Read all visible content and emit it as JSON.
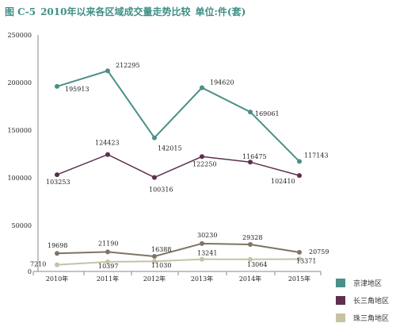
{
  "title": {
    "figure": "图 C-5",
    "main": "2010年以来各区域成交量走势比较",
    "unit": "单位:件(套)"
  },
  "colors": {
    "jingjin": "#4a8f88",
    "changsanjiao": "#5e2f4f",
    "zhusanjiao": "#c6c2a4",
    "title": "#3f8f86"
  },
  "chart_data": [
    {
      "type": "line",
      "title": "",
      "xlabel": "",
      "ylabel": "",
      "categories": [
        "2010年",
        "2011年",
        "2012年",
        "2013年",
        "2014年",
        "2015年"
      ],
      "series": [
        {
          "name": "京津地区",
          "values": [
            195913,
            212295,
            142015,
            194620,
            169061,
            117143
          ]
        },
        {
          "name": "长三角地区",
          "values": [
            103253,
            124423,
            100316,
            122250,
            116475,
            102410
          ]
        }
      ],
      "labels": [
        [
          "195913",
          "212295",
          "142015",
          "194620",
          "169061",
          "117143"
        ],
        [
          "103253",
          "124423",
          "100316",
          "122250",
          "116475",
          "102410"
        ]
      ],
      "ylim": [
        100000,
        250000
      ],
      "yticks": [
        "250000",
        "200000",
        "150000",
        "100000"
      ],
      "grid": false,
      "legend": "right"
    },
    {
      "type": "line",
      "title": "",
      "xlabel": "",
      "ylabel": "",
      "categories": [
        "2010年",
        "2011年",
        "2012年",
        "2013年",
        "2014年",
        "2015年"
      ],
      "series": [
        {
          "name": "长三角地区",
          "values": [
            19698,
            21190,
            16388,
            30230,
            29328,
            20759
          ]
        },
        {
          "name": "珠三角地区",
          "values": [
            7210,
            10397,
            11030,
            13241,
            13064,
            13371
          ]
        }
      ],
      "labels": [
        [
          "19698",
          "21190",
          "16388",
          "30230",
          "29328",
          "20759"
        ],
        [
          "7210",
          "10397",
          "11030",
          "13241",
          "13064",
          "13371"
        ]
      ],
      "ylim": [
        0,
        50000
      ],
      "yticks": [
        "50000",
        "0"
      ],
      "grid": false,
      "legend": "right"
    }
  ],
  "legend": [
    {
      "name": "京津地区",
      "color": "#4a8f88"
    },
    {
      "name": "长三角地区",
      "color": "#5e2f4f"
    },
    {
      "name": "珠三角地区",
      "color": "#c6c2a4"
    }
  ]
}
